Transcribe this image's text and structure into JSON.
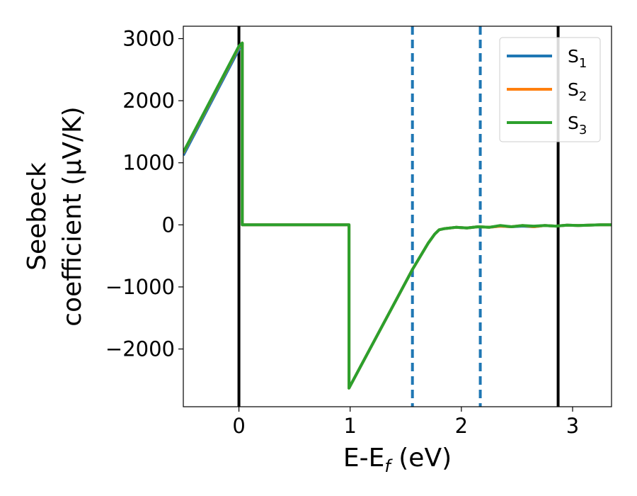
{
  "chart_data": {
    "type": "line",
    "xlabel": "E-E$_f$ (eV)",
    "xlabel_parts": {
      "main": "E-E",
      "sub": "f",
      "tail": " (eV)"
    },
    "ylabel_lines": [
      "Seebeck",
      "coefficient  (μV/K)"
    ],
    "xlim": [
      -0.5,
      3.35
    ],
    "ylim": [
      -2930,
      3200
    ],
    "xticks": [
      0,
      1,
      2,
      3
    ],
    "yticks": [
      -2000,
      -1000,
      0,
      1000,
      2000,
      3000
    ],
    "ytick_labels": [
      "−2000",
      "−1000",
      "0",
      "1000",
      "2000",
      "3000"
    ],
    "grid": false,
    "legend_position": "top-right",
    "vlines": [
      {
        "x": 0.0,
        "style": "solid",
        "color": "#000000"
      },
      {
        "x": 2.87,
        "style": "solid",
        "color": "#000000"
      },
      {
        "x": 1.56,
        "style": "dashed",
        "color": "#1f77b4"
      },
      {
        "x": 2.17,
        "style": "dashed",
        "color": "#1f77b4"
      }
    ],
    "series": [
      {
        "name": "S1",
        "label_main": "S",
        "label_sub": "1",
        "color": "#1f77b4",
        "x": [
          -0.5,
          0.0,
          0.03,
          0.03,
          0.99,
          0.99,
          1.56,
          1.7,
          1.76,
          1.8,
          1.85,
          1.95,
          2.05,
          2.15,
          2.25,
          2.35,
          2.45,
          2.55,
          2.65,
          2.75,
          2.85,
          2.95,
          3.05,
          3.15,
          3.25,
          3.35
        ],
        "y": [
          1120,
          2830,
          2930,
          0,
          0,
          -2630,
          -720,
          -300,
          -150,
          -80,
          -60,
          -40,
          -50,
          -30,
          -40,
          -20,
          -30,
          -20,
          -30,
          -10,
          -20,
          -5,
          -10,
          -5,
          0,
          0
        ]
      },
      {
        "name": "S2",
        "label_main": "S",
        "label_sub": "2",
        "color": "#ff7f0e",
        "x": [
          -0.5,
          0.0,
          0.03,
          0.03,
          0.99,
          0.99,
          1.56,
          1.7,
          1.76,
          1.8,
          1.85,
          1.95,
          2.05,
          2.15,
          2.25,
          2.35,
          2.45,
          2.55,
          2.65,
          2.75,
          2.85,
          2.95,
          3.05,
          3.15,
          3.25,
          3.35
        ],
        "y": [
          1160,
          2870,
          2930,
          0,
          0,
          -2630,
          -720,
          -300,
          -150,
          -80,
          -60,
          -40,
          -50,
          -30,
          -40,
          -20,
          -30,
          -10,
          -30,
          -10,
          -20,
          -5,
          -10,
          -5,
          0,
          0
        ]
      },
      {
        "name": "S3",
        "label_main": "S",
        "label_sub": "3",
        "color": "#2ca02c",
        "x": [
          -0.5,
          0.0,
          0.03,
          0.03,
          0.99,
          0.99,
          1.56,
          1.7,
          1.76,
          1.8,
          1.85,
          1.95,
          2.05,
          2.15,
          2.25,
          2.35,
          2.45,
          2.55,
          2.65,
          2.75,
          2.85,
          2.95,
          3.05,
          3.15,
          3.25,
          3.35
        ],
        "y": [
          1170,
          2880,
          2930,
          0,
          0,
          -2630,
          -720,
          -300,
          -150,
          -80,
          -60,
          -40,
          -50,
          -30,
          -40,
          -10,
          -30,
          -10,
          -20,
          -10,
          -20,
          -5,
          -10,
          -5,
          0,
          0
        ]
      }
    ]
  }
}
